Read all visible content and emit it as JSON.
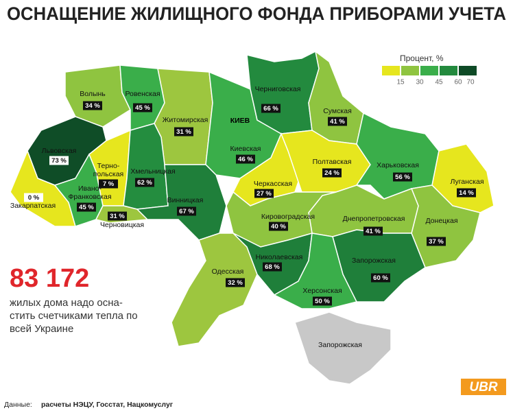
{
  "header": {
    "title": "ОСНАЩЕНИЕ ЖИЛИЩНОГО ФОНДА ПРИБОРАМИ УЧЕТА"
  },
  "legend": {
    "title": "Процент, %",
    "colors": [
      "#e6e61e",
      "#8fc440",
      "#3aae4a",
      "#238a3e",
      "#0e4a26"
    ],
    "ticks": [
      15,
      30,
      45,
      60,
      70
    ]
  },
  "regions": [
    {
      "name_lines": [
        "Волынь"
      ],
      "label": "34 %",
      "color": "#8fc440"
    },
    {
      "name_lines": [
        "Ровенская"
      ],
      "label": "45 %",
      "color": "#3aae4a"
    },
    {
      "name_lines": [
        "Житомирская"
      ],
      "label": "31 %",
      "color": "#9dc63f"
    },
    {
      "name_lines": [
        "Киевская"
      ],
      "label": "46 %",
      "color": "#3aae4a"
    },
    {
      "name_lines": [
        "Черниговская"
      ],
      "label": "66 %",
      "color": "#238a3e"
    },
    {
      "name_lines": [
        "Сумская"
      ],
      "label": "41 %",
      "color": "#8fc440"
    },
    {
      "name_lines": [
        "Львовская"
      ],
      "label": "73 %",
      "color": "#0f4d27"
    },
    {
      "name_lines": [
        "Терно-",
        "польская"
      ],
      "label": "7 %",
      "color": "#e6e61e"
    },
    {
      "name_lines": [
        "Хмельницкая"
      ],
      "label": "62 %",
      "color": "#248d3f"
    },
    {
      "name_lines": [
        "Закарпатская"
      ],
      "label": "0 %",
      "color": "#e6e61e"
    },
    {
      "name_lines": [
        "Ивано-",
        "Франковская"
      ],
      "label": "45 %",
      "color": "#3aae4a"
    },
    {
      "name_lines": [
        "Черновицкая"
      ],
      "label": "31 %",
      "color": "#9dc63f"
    },
    {
      "name_lines": [
        "Винницкая"
      ],
      "label": "67 %",
      "color": "#1f7f3a"
    },
    {
      "name_lines": [
        "Черкасская"
      ],
      "label": "27 %",
      "color": "#e6e61e"
    },
    {
      "name_lines": [
        "Полтавская"
      ],
      "label": "24 %",
      "color": "#e6e61e"
    },
    {
      "name_lines": [
        "Харьковская"
      ],
      "label": "56 %",
      "color": "#3aae4a"
    },
    {
      "name_lines": [
        "Луганская"
      ],
      "label": "14 %",
      "color": "#e6e61e"
    },
    {
      "name_lines": [
        "Донецкая"
      ],
      "label": "37 %",
      "color": "#8fc440"
    },
    {
      "name_lines": [
        "Днепропетровская"
      ],
      "label": "41 %",
      "color": "#8fc440"
    },
    {
      "name_lines": [
        "Кировоградская"
      ],
      "label": "40 %",
      "color": "#8fc440"
    },
    {
      "name_lines": [
        "Одесская"
      ],
      "label": "32 %",
      "color": "#9dc63f"
    },
    {
      "name_lines": [
        "Николаевская"
      ],
      "label": "68 %",
      "color": "#1f7f3a"
    },
    {
      "name_lines": [
        "Запорожская"
      ],
      "label": "60 %",
      "color": "#1f7f3a"
    },
    {
      "name_lines": [
        "Херсонская"
      ],
      "label": "50 %",
      "color": "#3aae4a"
    },
    {
      "name_lines": [
        "Запорожская"
      ],
      "color": "#c8c8c8"
    }
  ],
  "capital": "КИЕВ",
  "stat": {
    "number": "83 172",
    "lines": [
      "жилых дома надо осна-",
      "стить счетчиками тепла по",
      "всей Украине"
    ]
  },
  "source": {
    "prefix": "Данные:",
    "text": "расчеты НЭЦУ, Госстат, Нацкомуслуг"
  },
  "logo": "UBR"
}
